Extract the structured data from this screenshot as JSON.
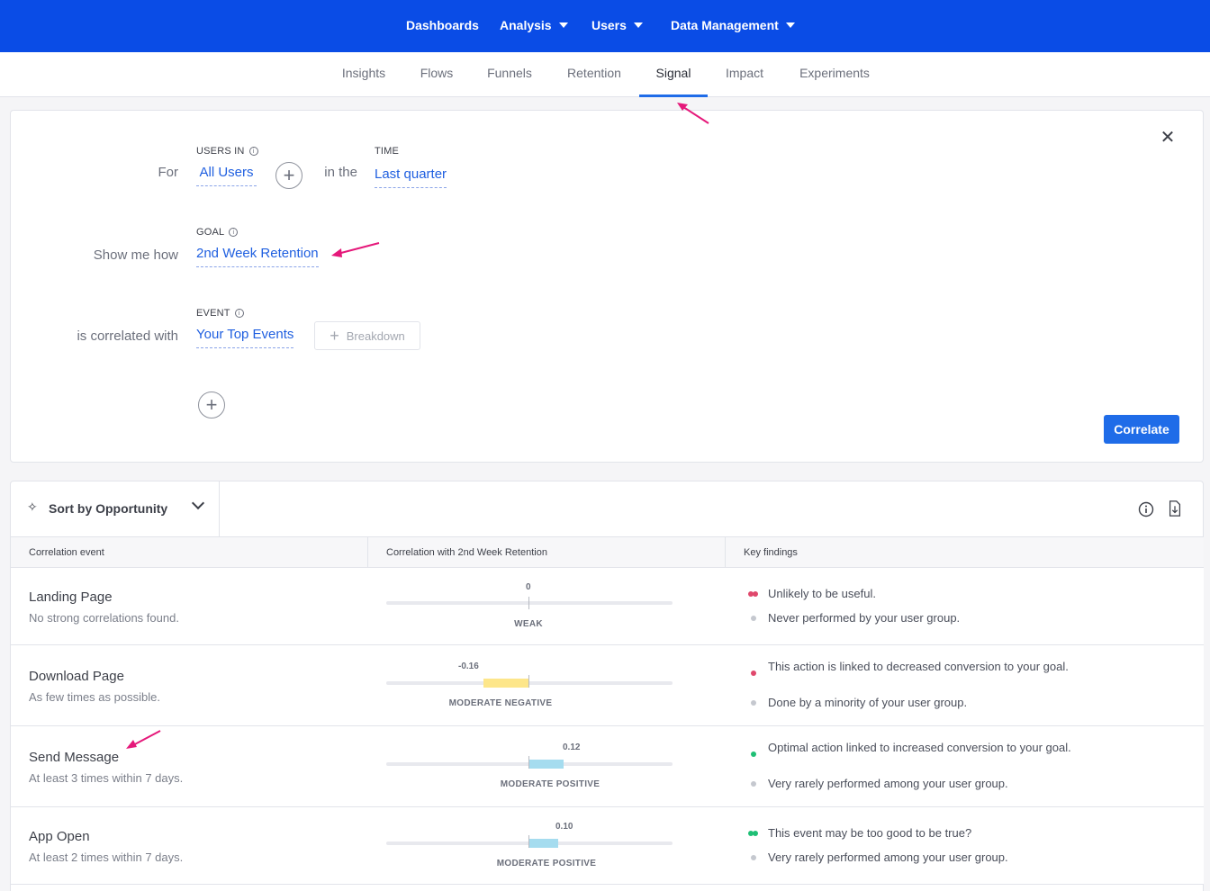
{
  "topnav": {
    "items": [
      {
        "label": "Dashboards",
        "has_caret": false
      },
      {
        "label": "Analysis",
        "has_caret": true
      },
      {
        "label": "Users",
        "has_caret": true
      },
      {
        "label": "Data Management",
        "has_caret": true
      }
    ]
  },
  "subnav": {
    "tabs": [
      "Insights",
      "Flows",
      "Funnels",
      "Retention",
      "Signal",
      "Impact",
      "Experiments"
    ],
    "active": "Signal"
  },
  "query": {
    "for_label": "For",
    "users_in_caption": "USERS IN",
    "users_in_value": "All Users",
    "in_the_label": "in the",
    "time_caption": "TIME",
    "time_value": "Last quarter",
    "show_me_how_label": "Show me how",
    "goal_caption": "GOAL",
    "goal_value": "2nd Week Retention",
    "correlated_label": "is correlated with",
    "event_caption": "EVENT",
    "event_value": "Your Top Events",
    "breakdown_label": "Breakdown",
    "correlate_label": "Correlate"
  },
  "results": {
    "sort_label": "Sort by Opportunity",
    "columns": [
      "Correlation event",
      "Correlation with 2nd Week Retention",
      "Key findings"
    ],
    "rows": [
      {
        "name": "Landing Page",
        "sub": "No strong correlations found.",
        "value_label": "0",
        "value": 0,
        "caption": "WEAK",
        "bar_color": "#e8e9ee",
        "findings": [
          {
            "text": "Unlikely to be useful.",
            "dot": "double-red"
          },
          {
            "text": "Never performed by your user group.",
            "dot": "gray"
          }
        ]
      },
      {
        "name": "Download Page",
        "sub": "As few times as possible.",
        "value_label": "-0.16",
        "value": -0.16,
        "caption": "MODERATE NEGATIVE",
        "bar_color": "#fde68a",
        "findings": [
          {
            "text": "This action is linked to decreased conversion to your goal.",
            "dot": "red"
          },
          {
            "text": "Done by a minority of your user group.",
            "dot": "gray"
          }
        ]
      },
      {
        "name": "Send Message",
        "sub": "At least 3 times within 7 days.",
        "value_label": "0.12",
        "value": 0.12,
        "caption": "MODERATE POSITIVE",
        "bar_color": "#a5dcef",
        "findings": [
          {
            "text": "Optimal action linked to increased conversion to your goal.",
            "dot": "green"
          },
          {
            "text": "Very rarely performed among your user group.",
            "dot": "gray"
          }
        ]
      },
      {
        "name": "App Open",
        "sub": "At least 2 times within 7 days.",
        "value_label": "0.10",
        "value": 0.1,
        "caption": "MODERATE POSITIVE",
        "bar_color": "#a5dcef",
        "findings": [
          {
            "text": "This event may be too good to be true?",
            "dot": "double-green"
          },
          {
            "text": "Very rarely performed among your user group.",
            "dot": "gray"
          }
        ]
      }
    ]
  },
  "colors": {
    "brand_blue": "#0a4ce6",
    "link_blue": "#1f5fe0",
    "annotation_pink": "#e5187a",
    "dot_red": "#e0486c",
    "dot_green": "#1fbf75",
    "dot_gray": "#c5c8cf"
  }
}
